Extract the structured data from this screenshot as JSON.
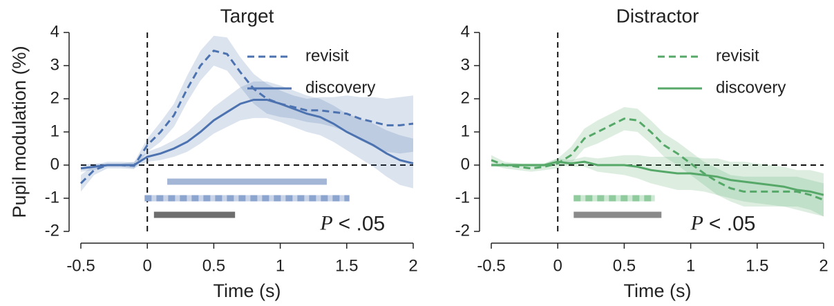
{
  "chart_data": [
    {
      "type": "line",
      "title": "Target",
      "xlabel": "Time (s)",
      "ylabel": "Pupil modulation (%)",
      "x": [
        -0.5,
        -0.4,
        -0.3,
        -0.2,
        -0.1,
        0,
        0.1,
        0.2,
        0.3,
        0.4,
        0.5,
        0.6,
        0.7,
        0.8,
        0.9,
        1.0,
        1.1,
        1.2,
        1.3,
        1.4,
        1.5,
        1.6,
        1.7,
        1.8,
        1.9,
        2.0
      ],
      "series": [
        {
          "name": "revisit",
          "color": "#4c72b0",
          "style": "dashed",
          "values": [
            -0.55,
            -0.15,
            0,
            0,
            -0.02,
            0.6,
            1.0,
            1.5,
            2.3,
            3.0,
            3.45,
            3.35,
            2.8,
            2.3,
            2.0,
            1.85,
            1.75,
            1.65,
            1.65,
            1.6,
            1.55,
            1.4,
            1.3,
            1.2,
            1.2,
            1.25
          ],
          "error": [
            0.25,
            0.15,
            0.1,
            0.1,
            0.1,
            0.2,
            0.3,
            0.35,
            0.4,
            0.45,
            0.45,
            0.5,
            0.45,
            0.45,
            0.45,
            0.4,
            0.35,
            0.35,
            0.4,
            0.45,
            0.55,
            0.65,
            0.75,
            0.8,
            0.85,
            0.85
          ]
        },
        {
          "name": "discovery",
          "color": "#4c72b0",
          "style": "solid",
          "values": [
            -0.1,
            -0.05,
            0,
            0,
            0,
            0.25,
            0.35,
            0.5,
            0.7,
            1.0,
            1.35,
            1.6,
            1.85,
            1.97,
            1.97,
            1.85,
            1.7,
            1.55,
            1.45,
            1.25,
            1.0,
            0.8,
            0.6,
            0.35,
            0.15,
            0.05
          ],
          "error": [
            0.1,
            0.1,
            0.05,
            0.05,
            0.1,
            0.15,
            0.2,
            0.25,
            0.3,
            0.35,
            0.4,
            0.45,
            0.5,
            0.55,
            0.55,
            0.55,
            0.55,
            0.55,
            0.55,
            0.55,
            0.55,
            0.6,
            0.65,
            0.7,
            0.75,
            0.75
          ]
        }
      ],
      "sig_bars": [
        {
          "start": 0.15,
          "end": 1.35,
          "y": -0.5,
          "color": "#a3b6d6",
          "style": "solid"
        },
        {
          "start": -0.02,
          "end": 1.52,
          "y": -1,
          "color": "#c9d4e8",
          "dash_color": "#8ca5cf",
          "style": "dashed"
        },
        {
          "start": 0.05,
          "end": 0.66,
          "y": -1.5,
          "color": "#6e6e6e",
          "style": "solid"
        }
      ],
      "annotation": {
        "italic": "P",
        "text": "< .05",
        "x": 1.3,
        "y": -1.8
      },
      "hline": 0,
      "vline": 0,
      "xlim": [
        -0.5,
        2
      ],
      "xticks": [
        -0.5,
        0,
        0.5,
        1,
        1.5,
        2
      ],
      "ylim": [
        -2,
        4
      ],
      "yticks": [
        -2,
        -1,
        0,
        1,
        2,
        3,
        4
      ],
      "legend": "upper right"
    },
    {
      "type": "line",
      "title": "Distractor",
      "xlabel": "Time (s)",
      "x": [
        -0.5,
        -0.4,
        -0.3,
        -0.2,
        -0.1,
        0,
        0.1,
        0.2,
        0.3,
        0.4,
        0.5,
        0.6,
        0.7,
        0.8,
        0.9,
        1.0,
        1.1,
        1.2,
        1.3,
        1.4,
        1.5,
        1.6,
        1.7,
        1.8,
        1.9,
        2.0
      ],
      "series": [
        {
          "name": "revisit",
          "color": "#55a868",
          "style": "dashed",
          "values": [
            0.15,
            0,
            -0.05,
            -0.1,
            -0.05,
            0.05,
            0.3,
            0.8,
            1.0,
            1.2,
            1.4,
            1.35,
            1.0,
            0.6,
            0.35,
            0.05,
            -0.25,
            -0.5,
            -0.7,
            -0.8,
            -0.8,
            -0.8,
            -0.8,
            -0.8,
            -0.9,
            -1.05
          ],
          "error": [
            0.15,
            0.1,
            0.1,
            0.1,
            0.1,
            0.15,
            0.25,
            0.3,
            0.35,
            0.35,
            0.35,
            0.35,
            0.35,
            0.35,
            0.35,
            0.35,
            0.35,
            0.4,
            0.4,
            0.45,
            0.45,
            0.45,
            0.45,
            0.45,
            0.45,
            0.5
          ]
        },
        {
          "name": "discovery",
          "color": "#55a868",
          "style": "solid",
          "values": [
            0,
            0,
            0,
            0,
            0,
            0.1,
            0.05,
            0.1,
            0,
            0,
            0,
            -0.05,
            -0.15,
            -0.2,
            -0.25,
            -0.25,
            -0.3,
            -0.35,
            -0.45,
            -0.5,
            -0.55,
            -0.6,
            -0.65,
            -0.75,
            -0.8,
            -0.9
          ],
          "error": [
            0.05,
            0.05,
            0.05,
            0.05,
            0.05,
            0.1,
            0.1,
            0.15,
            0.2,
            0.25,
            0.3,
            0.35,
            0.4,
            0.45,
            0.5,
            0.5,
            0.5,
            0.55,
            0.55,
            0.6,
            0.6,
            0.6,
            0.6,
            0.6,
            0.65,
            0.65
          ]
        }
      ],
      "sig_bars": [
        {
          "start": 0.12,
          "end": 0.73,
          "y": -1,
          "color": "#cde8d3",
          "dash_color": "#8fcb9c",
          "style": "dashed"
        },
        {
          "start": 0.12,
          "end": 0.78,
          "y": -1.5,
          "color": "#8a8a8a",
          "style": "solid"
        }
      ],
      "annotation": {
        "italic": "P",
        "text": "< .05",
        "x": 1.0,
        "y": -1.8
      },
      "hline": 0,
      "vline": 0,
      "xlim": [
        -0.5,
        2
      ],
      "xticks": [
        -0.5,
        0,
        0.5,
        1,
        1.5,
        2
      ],
      "ylim": [
        -2,
        4
      ],
      "yticks": [
        -2,
        -1,
        0,
        1,
        2,
        3,
        4
      ],
      "legend": "upper right"
    }
  ]
}
